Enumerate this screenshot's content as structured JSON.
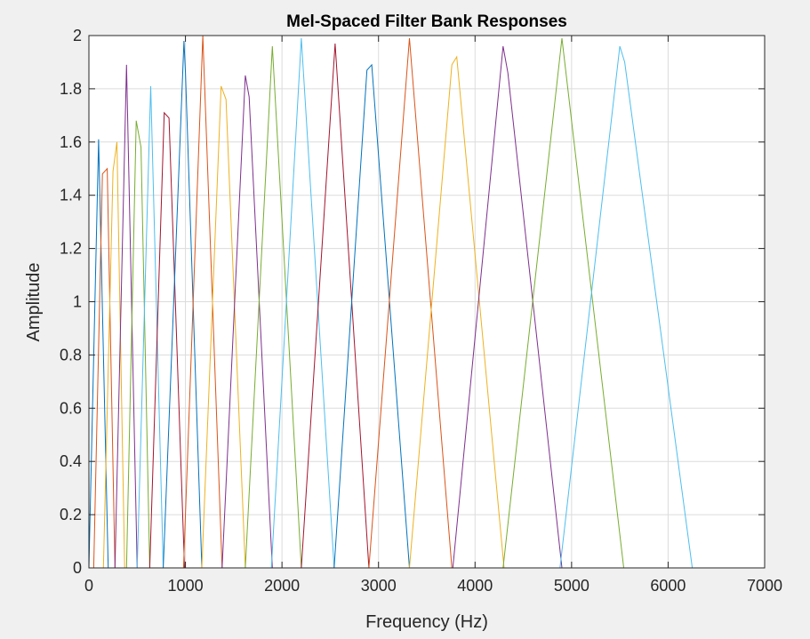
{
  "chart_data": {
    "type": "line",
    "title": "Mel-Spaced Filter Bank Responses",
    "xlabel": "Frequency (Hz)",
    "ylabel": "Amplitude",
    "xlim": [
      0,
      7000
    ],
    "ylim": [
      0,
      2
    ],
    "xticks": [
      0,
      1000,
      2000,
      3000,
      4000,
      5000,
      6000,
      7000
    ],
    "yticks": [
      0,
      0.2,
      0.4,
      0.6,
      0.8,
      1,
      1.2,
      1.4,
      1.6,
      1.8,
      2
    ],
    "grid": true,
    "legend": "none",
    "series": [
      {
        "color": "#0072BD",
        "x": [
          0,
          100,
          200
        ],
        "y": [
          0,
          1.61,
          0
        ]
      },
      {
        "color": "#D95319",
        "x": [
          50,
          140,
          190,
          270
        ],
        "y": [
          0,
          1.48,
          1.5,
          0
        ]
      },
      {
        "color": "#EDB120",
        "x": [
          150,
          250,
          290,
          370
        ],
        "y": [
          0,
          1.49,
          1.6,
          0
        ]
      },
      {
        "color": "#7E2F8E",
        "x": [
          270,
          390,
          500
        ],
        "y": [
          0,
          1.89,
          0
        ]
      },
      {
        "color": "#77AC30",
        "x": [
          390,
          490,
          540,
          630
        ],
        "y": [
          0,
          1.68,
          1.58,
          0
        ]
      },
      {
        "color": "#4DBEEE",
        "x": [
          500,
          640,
          770
        ],
        "y": [
          0,
          1.81,
          0
        ]
      },
      {
        "color": "#A2142F",
        "x": [
          630,
          780,
          830,
          990
        ],
        "y": [
          0,
          1.71,
          1.69,
          0
        ]
      },
      {
        "color": "#0072BD",
        "x": [
          770,
          985,
          1000,
          1170
        ],
        "y": [
          0,
          1.98,
          1.86,
          0
        ]
      },
      {
        "color": "#D95319",
        "x": [
          980,
          1180,
          1380
        ],
        "y": [
          0,
          2.0,
          0
        ]
      },
      {
        "color": "#EDB120",
        "x": [
          1170,
          1370,
          1420,
          1620
        ],
        "y": [
          0,
          1.81,
          1.76,
          0
        ]
      },
      {
        "color": "#7E2F8E",
        "x": [
          1380,
          1620,
          1660,
          1900
        ],
        "y": [
          0,
          1.85,
          1.77,
          0
        ]
      },
      {
        "color": "#77AC30",
        "x": [
          1620,
          1900,
          2200
        ],
        "y": [
          0,
          1.96,
          0
        ]
      },
      {
        "color": "#4DBEEE",
        "x": [
          1890,
          2200,
          2540
        ],
        "y": [
          0,
          1.99,
          0
        ]
      },
      {
        "color": "#A2142F",
        "x": [
          2200,
          2550,
          2900
        ],
        "y": [
          0,
          1.97,
          0
        ]
      },
      {
        "color": "#0072BD",
        "x": [
          2540,
          2880,
          2930,
          3320
        ],
        "y": [
          0,
          1.87,
          1.89,
          0
        ]
      },
      {
        "color": "#D95319",
        "x": [
          2900,
          3320,
          3760
        ],
        "y": [
          0,
          1.99,
          0
        ]
      },
      {
        "color": "#EDB120",
        "x": [
          3320,
          3760,
          3810,
          4300
        ],
        "y": [
          0,
          1.89,
          1.92,
          0
        ]
      },
      {
        "color": "#7E2F8E",
        "x": [
          3770,
          4290,
          4340,
          4900
        ],
        "y": [
          0,
          1.96,
          1.86,
          0
        ]
      },
      {
        "color": "#77AC30",
        "x": [
          4290,
          4900,
          5540
        ],
        "y": [
          0,
          1.99,
          0
        ]
      },
      {
        "color": "#4DBEEE",
        "x": [
          4880,
          5500,
          5550,
          6250
        ],
        "y": [
          0,
          1.96,
          1.9,
          0
        ]
      }
    ]
  }
}
